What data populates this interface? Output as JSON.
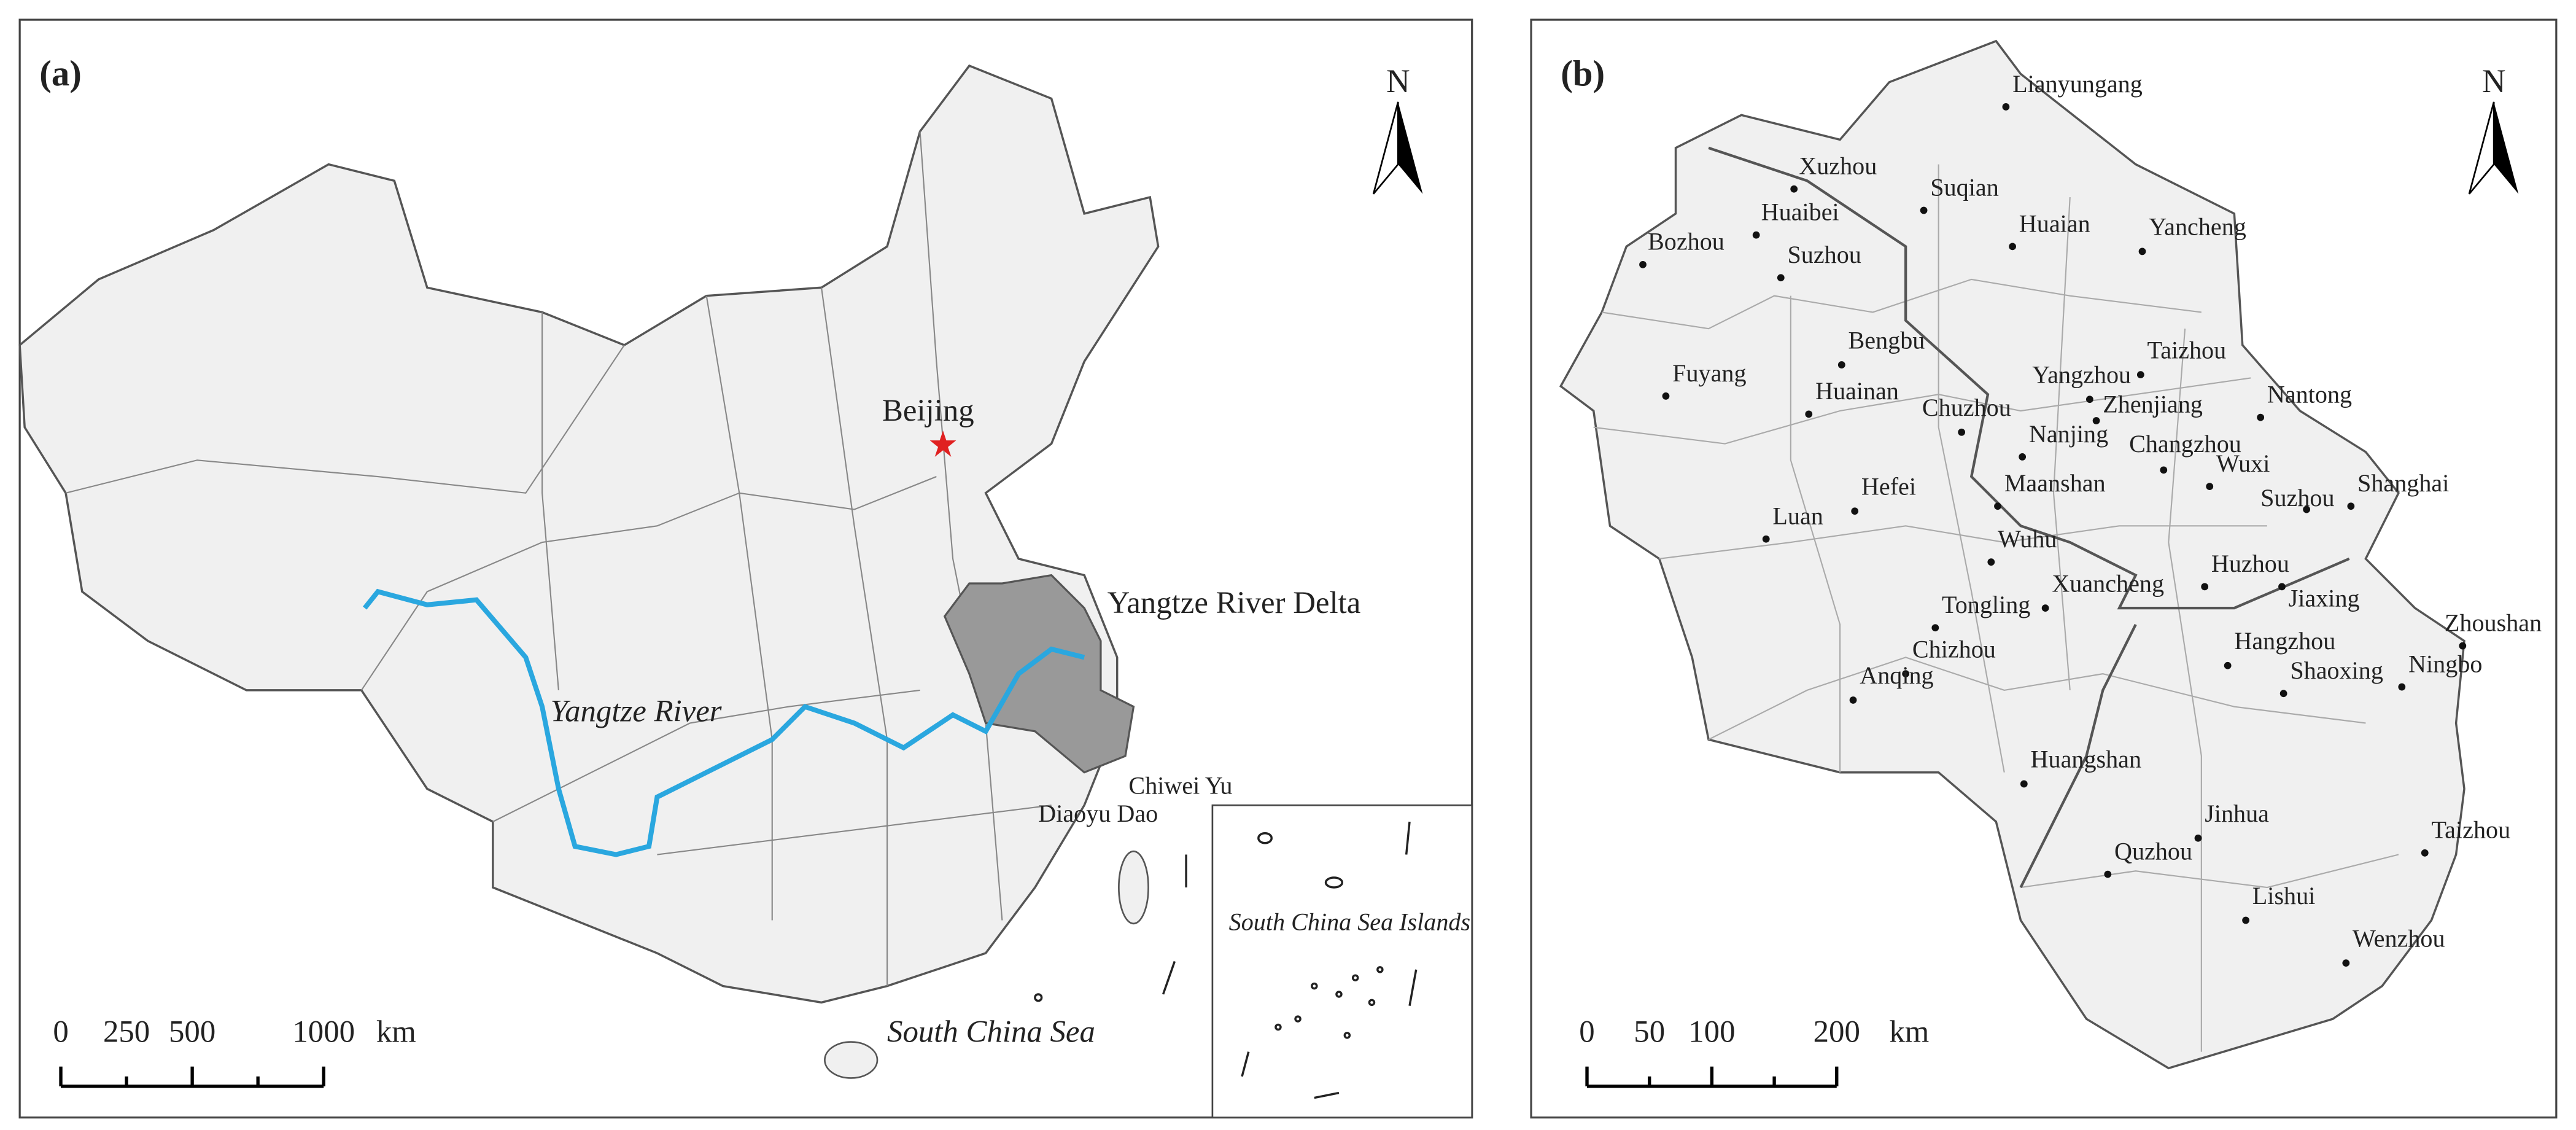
{
  "panel_a": {
    "label": "(a)",
    "north": "N",
    "labels": {
      "beijing": "Beijing",
      "delta": "Yangtze River Delta",
      "river": "Yangtze River",
      "chiwei": "Chiwei Yu",
      "diaoyu": "Diaoyu Dao",
      "scs_islands": "South China Sea Islands",
      "scs": "South China Sea"
    },
    "scale": {
      "ticks": [
        0,
        250,
        500,
        1000
      ],
      "unit": "km"
    }
  },
  "panel_b": {
    "label": "(b)",
    "north": "N",
    "cities": [
      "Lianyungang",
      "Xuzhou",
      "Suqian",
      "Huaibei",
      "Bozhou",
      "Suzhou",
      "Huaian",
      "Yancheng",
      "Bengbu",
      "Fuyang",
      "Taizhou",
      "Yangzhou",
      "Huainan",
      "Zhenjiang",
      "Chuzhou",
      "Nantong",
      "Nanjing",
      "Changzhou",
      "Wuxi",
      "Maanshan",
      "Hefei",
      "Suzhou",
      "Shanghai",
      "Luan",
      "Wuhu",
      "Huzhou",
      "Jiaxing",
      "Xuancheng",
      "Tongling",
      "Zhoushan",
      "Hangzhou",
      "Chizhou",
      "Ningbo",
      "Shaoxing",
      "Anqing",
      "Huangshan",
      "Jinhua",
      "Taizhou",
      "Quzhou",
      "Lishui",
      "Wenzhou"
    ],
    "scale": {
      "ticks": [
        0,
        50,
        100,
        200
      ],
      "unit": "km"
    }
  }
}
